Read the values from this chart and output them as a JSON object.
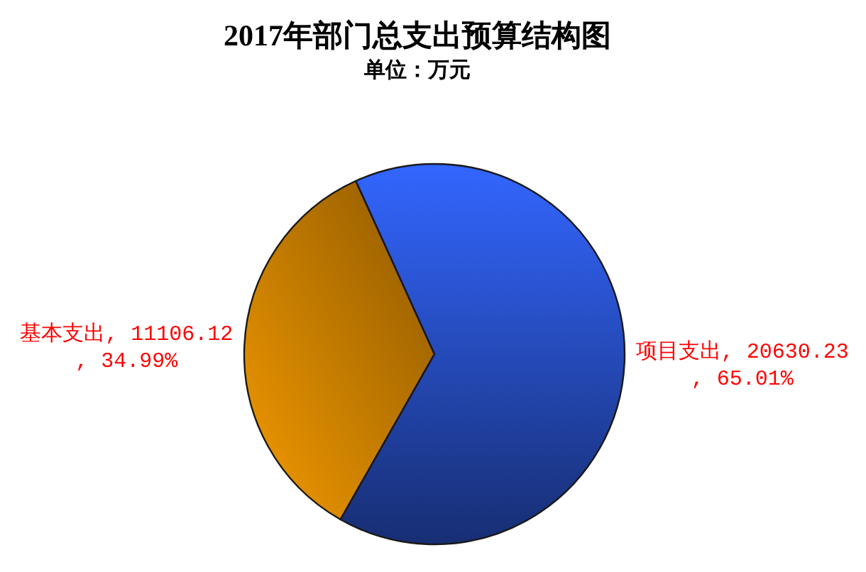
{
  "chart_data": {
    "type": "pie",
    "title": "2017年部门总支出预算结构图",
    "subtitle": "单位：万元",
    "categories": [
      "基本支出",
      "项目支出"
    ],
    "values": [
      11106.12,
      20630.23
    ],
    "colors": [
      "#f59b00",
      "#3366ff"
    ],
    "value_labels": [
      ", 11106.12\n, 34.99%",
      ", 20630.23\n, 65.01%"
    ]
  }
}
